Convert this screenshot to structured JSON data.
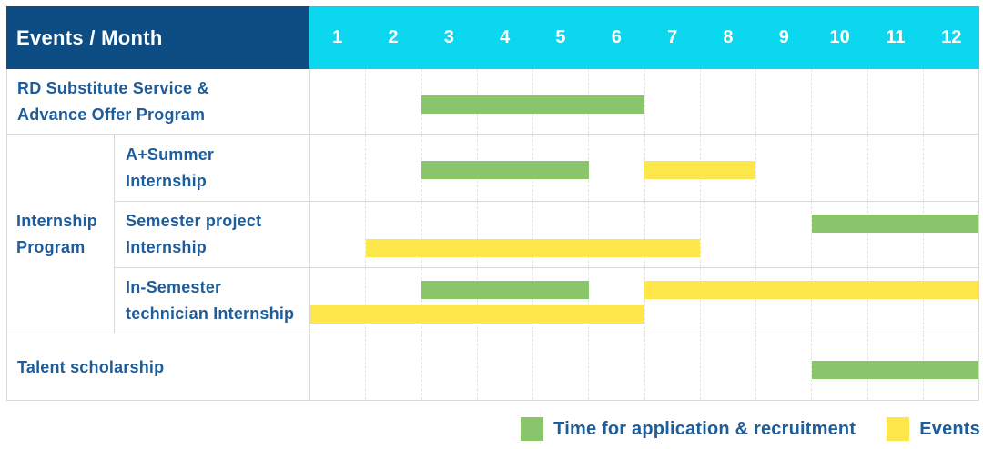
{
  "header": {
    "label": "Events / Month"
  },
  "colors": {
    "header_bg": "#0d4d84",
    "months_bg": "#0bd7ef",
    "header_text": "#ffffff",
    "label_text": "#1e5d9b",
    "bar_green": "#8bc56b",
    "bar_yellow": "#fde74b",
    "grid_border": "#d9d9d9",
    "month_gridline": "#e4e4e4",
    "background": "#ffffff"
  },
  "chart_data": {
    "type": "bar",
    "subtype": "gantt-timeline",
    "title": "",
    "xlabel": "Month",
    "x_range": [
      1,
      12
    ],
    "months": [
      "1",
      "2",
      "3",
      "4",
      "5",
      "6",
      "7",
      "8",
      "9",
      "10",
      "11",
      "12"
    ],
    "grid": "dashed vertical month gridlines",
    "legend_position": "bottom-right",
    "series": [
      {
        "id": "recruitment",
        "name": "Time for application & recruitment",
        "color": "#8bc56b"
      },
      {
        "id": "events",
        "name": "Events",
        "color": "#fde74b"
      }
    ],
    "rows": [
      {
        "group": null,
        "label": "RD Substitute Service & Advance Offer Program",
        "label_lines": [
          "RD Substitute Service &",
          "Advance Offer Program"
        ],
        "bars": [
          {
            "series": "recruitment",
            "start_month": 3,
            "end_month": 6,
            "track": "center"
          }
        ]
      },
      {
        "group": "Internship Program",
        "group_lines": [
          "Internship",
          "Program"
        ],
        "label": "A+Summer Internship",
        "label_lines": [
          "A+Summer",
          "Internship"
        ],
        "bars": [
          {
            "series": "recruitment",
            "start_month": 3,
            "end_month": 5,
            "track": "center"
          },
          {
            "series": "events",
            "start_month": 7,
            "end_month": 8,
            "track": "center"
          }
        ]
      },
      {
        "group": "Internship Program",
        "group_lines": [
          "Internship",
          "Program"
        ],
        "label": "Semester project Internship",
        "label_lines": [
          "Semester project",
          "Internship"
        ],
        "bars": [
          {
            "series": "recruitment",
            "start_month": 10,
            "end_month": 12,
            "track": "top"
          },
          {
            "series": "events",
            "start_month": 2,
            "end_month": 7,
            "track": "bottom"
          }
        ]
      },
      {
        "group": "Internship Program",
        "group_lines": [
          "Internship",
          "Program"
        ],
        "label": "In-Semester technician Internship",
        "label_lines": [
          "In-Semester",
          "technician Internship"
        ],
        "bars": [
          {
            "series": "recruitment",
            "start_month": 3,
            "end_month": 5,
            "track": "top"
          },
          {
            "series": "events",
            "start_month": 7,
            "end_month": 12,
            "track": "top"
          },
          {
            "series": "events",
            "start_month": 1,
            "end_month": 6,
            "track": "bottom"
          }
        ]
      },
      {
        "group": null,
        "label": "Talent scholarship",
        "label_lines": [
          "Talent scholarship"
        ],
        "bars": [
          {
            "series": "recruitment",
            "start_month": 10,
            "end_month": 12,
            "track": "center"
          }
        ]
      }
    ]
  },
  "legend": [
    {
      "series": "recruitment",
      "label": "Time for application & recruitment",
      "color": "#8bc56b"
    },
    {
      "series": "events",
      "label": "Events",
      "color": "#fde74b"
    }
  ]
}
